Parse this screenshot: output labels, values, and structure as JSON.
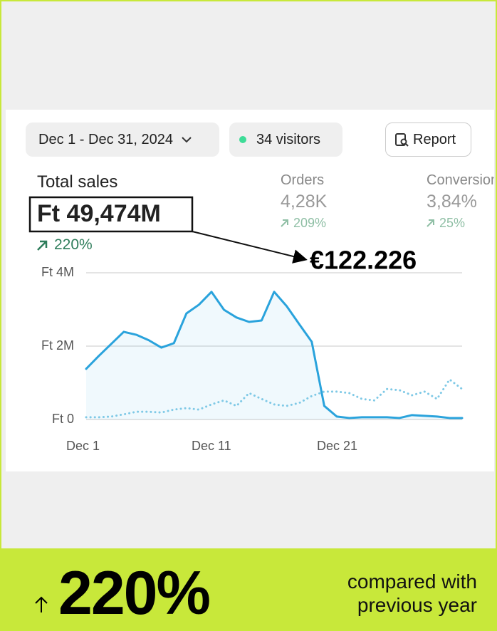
{
  "filters": {
    "date_range": "Dec 1 - Dec 31, 2024",
    "visitors": "34 visitors",
    "report": "Report"
  },
  "metrics": [
    {
      "label": "Total sales",
      "value": "Ft 49,474M",
      "change": "220%"
    },
    {
      "label": "Orders",
      "value": "4,28K",
      "change": "209%"
    },
    {
      "label": "Conversion",
      "value": "3,84%",
      "change": "25%"
    }
  ],
  "annotation": "€122.226",
  "banner": {
    "value": "220%",
    "text": "compared with previous year"
  },
  "chart_data": {
    "type": "line",
    "categories": [
      "Dec 1",
      null,
      null,
      null,
      null,
      null,
      null,
      null,
      null,
      null,
      "Dec 11",
      null,
      null,
      null,
      null,
      null,
      null,
      null,
      null,
      null,
      "Dec 21",
      null,
      null,
      null,
      null,
      null,
      null,
      null,
      null,
      null,
      null
    ],
    "series": [
      {
        "color": "#2aa3dc",
        "style": "solid",
        "values": [
          1380000,
          1730000,
          2060000,
          2390000,
          2310000,
          2160000,
          1960000,
          2080000,
          2890000,
          3130000,
          3480000,
          2990000,
          2780000,
          2660000,
          2700000,
          3480000,
          3090000,
          2600000,
          2120000,
          370000,
          80000,
          40000,
          60000,
          60000,
          60000,
          40000,
          120000,
          100000,
          80000,
          40000,
          40000
        ]
      },
      {
        "color": "#7fc9e6",
        "style": "dotted",
        "values": [
          60000,
          60000,
          80000,
          140000,
          210000,
          210000,
          190000,
          270000,
          310000,
          270000,
          410000,
          520000,
          370000,
          720000,
          560000,
          410000,
          370000,
          450000,
          640000,
          760000,
          760000,
          720000,
          560000,
          520000,
          830000,
          800000,
          660000,
          760000,
          560000,
          1090000,
          830000
        ]
      }
    ],
    "ylim": [
      0,
      4000000
    ],
    "yticks": [
      {
        "value": 0,
        "label": "Ft 0"
      },
      {
        "value": 2000000,
        "label": "Ft 2M"
      },
      {
        "value": 4000000,
        "label": "Ft 4M"
      }
    ],
    "grid": true
  }
}
